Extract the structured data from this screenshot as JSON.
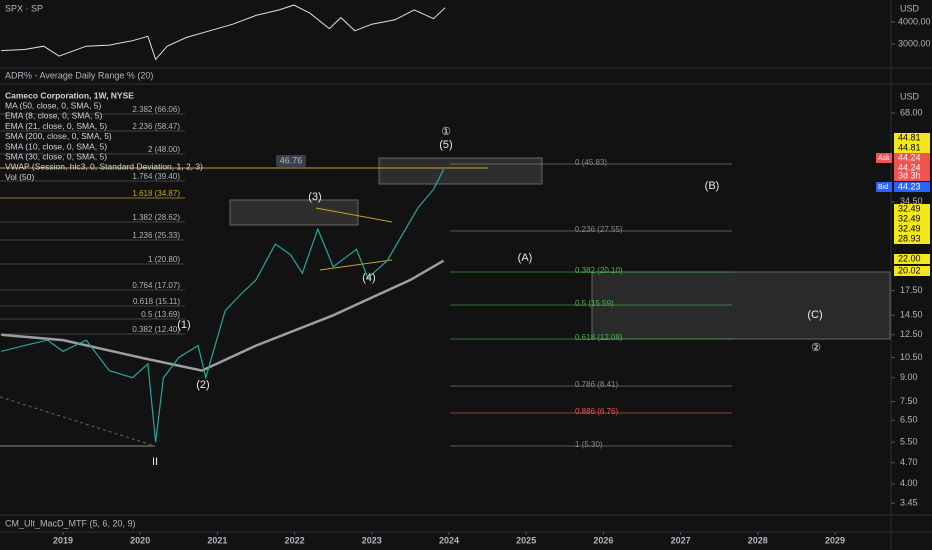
{
  "top_pane": {
    "title": "SPX · SP",
    "currency": "USD",
    "yticks": [
      {
        "value": 4000,
        "label": "4000.00"
      },
      {
        "value": 3000,
        "label": "3000.00"
      }
    ],
    "x": [
      2018.2,
      2018.5,
      2018.75,
      2018.95,
      2019.3,
      2019.6,
      2019.9,
      2020.1,
      2020.2,
      2020.35,
      2020.6,
      2020.9,
      2021.2,
      2021.5,
      2021.8,
      2021.99,
      2022.2,
      2022.45,
      2022.6,
      2022.78,
      2023.0,
      2023.3,
      2023.55,
      2023.8,
      2023.95
    ],
    "values": [
      2700,
      2750,
      2900,
      2450,
      2900,
      2950,
      3150,
      3350,
      2300,
      2900,
      3300,
      3600,
      3900,
      4300,
      4550,
      4770,
      4400,
      3700,
      4200,
      3600,
      3900,
      4100,
      4550,
      4150,
      4650
    ]
  },
  "adr_label": "ADR% - Average Daily Range % (20)",
  "main": {
    "legend": [
      "Cameco Corporation, 1W, NYSE",
      "MA (50, close, 0, SMA, 5)",
      "EMA (8, close, 0, SMA, 5)",
      "EMA (21, close, 0, SMA, 5)",
      "SMA (200, close, 0, SMA, 5)",
      "SMA (10, close, 0, SMA, 5)",
      "SMA (30, close, 0, SMA, 5)",
      "VWAP (Session, hlc3, 0, Standard Deviation, 1, 2, 3)",
      "Vol (50)"
    ],
    "currency": "USD",
    "yticks": [
      {
        "value": 68,
        "label": "68.00"
      },
      {
        "value": 34.5,
        "label": "34.50"
      },
      {
        "value": 17.5,
        "label": "17.50"
      },
      {
        "value": 14.5,
        "label": "14.50"
      },
      {
        "value": 12.5,
        "label": "12.50"
      },
      {
        "value": 10.5,
        "label": "10.50"
      },
      {
        "value": 9,
        "label": "9.00"
      },
      {
        "value": 7.5,
        "label": "7.50"
      },
      {
        "value": 6.5,
        "label": "6.50"
      },
      {
        "value": 5.5,
        "label": "5.50"
      },
      {
        "value": 4.7,
        "label": "4.70"
      },
      {
        "value": 4,
        "label": "4.00"
      },
      {
        "value": 3.45,
        "label": "3.45"
      }
    ],
    "log_scale": true,
    "badges": [
      {
        "label": "44.81",
        "color": "#f5e71c"
      },
      {
        "label": "44.81",
        "color": "#f5e71c"
      },
      {
        "prefix": "Ask",
        "label": "44.24",
        "color": "#f05350"
      },
      {
        "label": "44.24",
        "color": "#f05350"
      },
      {
        "label": "3d 3h",
        "color": "#f05350"
      },
      {
        "prefix": "Bid",
        "label": "44.23",
        "color": "#2962ff"
      },
      {
        "label": "32.49",
        "color": "#f5e71c"
      },
      {
        "label": "32.49",
        "color": "#f5e71c"
      },
      {
        "label": "32.49",
        "color": "#f5e71c"
      },
      {
        "label": "28.93",
        "color": "#f5e71c"
      },
      {
        "label": "22.00",
        "color": "#f5e71c"
      },
      {
        "label": "20.02",
        "color": "#f5e71c"
      }
    ],
    "price": {
      "x": [
        2018.2,
        2018.5,
        2018.8,
        2019.0,
        2019.3,
        2019.6,
        2019.9,
        2020.1,
        2020.2,
        2020.3,
        2020.5,
        2020.75,
        2020.85,
        2021.1,
        2021.3,
        2021.5,
        2021.75,
        2021.95,
        2022.1,
        2022.3,
        2022.5,
        2022.8,
        2022.95,
        2023.2,
        2023.4,
        2023.6,
        2023.8,
        2023.93
      ],
      "values": [
        11,
        11.5,
        12,
        11,
        12,
        9.5,
        9,
        10,
        5.5,
        9,
        10.5,
        11.5,
        9,
        15,
        17,
        19,
        25,
        23,
        20,
        28,
        21,
        24,
        19.3,
        22,
        27,
        33,
        38,
        44.24
      ]
    },
    "sma_200": {
      "x": [
        2018.2,
        2019.0,
        2020.0,
        2020.8,
        2021.5,
        2022.5,
        2023.5,
        2023.93
      ],
      "values": [
        12.5,
        12,
        10.5,
        9.5,
        11.5,
        14.5,
        19,
        22
      ]
    },
    "fib_right": [
      "0 (45.83)",
      "0.236 (27.55)",
      "0.382 (20.10)",
      "0.5 (15.59)",
      "0.618 (12.08)",
      "0.786 (8.41)",
      "0.886 (6.76)",
      "1 (5.30)"
    ],
    "fib_left": [
      "2.382 (66.06)",
      "2.236 (58.47)",
      "2 (48.00)",
      "1.764 (39.40)",
      "1.618 (34.87)",
      "1.382 (28.62)",
      "1.236 (25.33)",
      "1 (20.80)",
      "0.764 (17.07)",
      "0.618 (15.11)",
      "0.5 (13.69)",
      "0.382 (12.40)"
    ],
    "waves": [
      "(1)",
      "(2)",
      "(3)",
      "(4)",
      "(5)",
      "①",
      "②",
      "(A)",
      "(B)",
      "(C)",
      "II"
    ],
    "price_tag": "46.76"
  },
  "macd_label": "CM_Ult_MacD_MTF (5, 6, 20, 9)",
  "x_axis": {
    "ticks": [
      2019,
      2020,
      2021,
      2022,
      2023,
      2024,
      2025,
      2026,
      2027,
      2028,
      2029
    ]
  }
}
